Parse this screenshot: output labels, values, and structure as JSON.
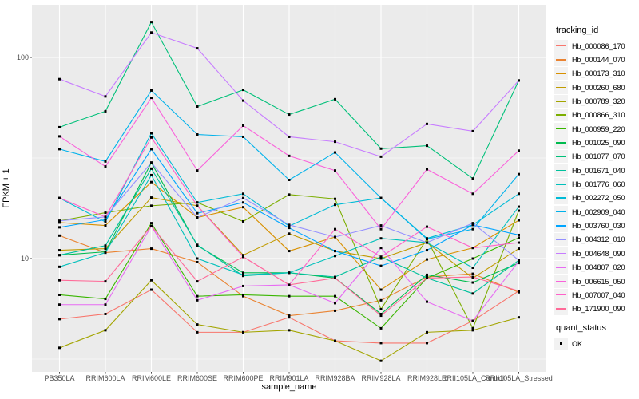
{
  "chart_data": {
    "type": "line",
    "title": "",
    "xlabel": "sample_name",
    "ylabel": "FPKM + 1",
    "y_scale": "log10",
    "ylim": [
      2.8,
      180
    ],
    "y_tick_labels": [
      "100",
      "10"
    ],
    "y_tick_values": [
      100,
      10
    ],
    "y_minor_gridlines": [
      31.6228,
      3.16228
    ],
    "grid": true,
    "legend_position": "right",
    "point_marker": "small-black-square",
    "categories": [
      "PB350LA",
      "RRIM600LA",
      "RRIM600LE",
      "RRIM600SE",
      "RRIM600PE",
      "RRIM901LA",
      "RRIM928BA",
      "RRIM928LA",
      "RRIM928LE",
      "RRII105LA_Control",
      "RRII105LA_Stressed"
    ],
    "series": [
      {
        "name": "Hb_000086_170",
        "color": "#F8766D",
        "values": [
          5.0,
          5.3,
          7.0,
          4.3,
          4.3,
          5.1,
          3.9,
          3.8,
          3.8,
          4.9,
          6.9
        ]
      },
      {
        "name": "Hb_000144_070",
        "color": "#EA8331",
        "values": [
          13.0,
          10.7,
          11.2,
          9.6,
          6.5,
          5.2,
          5.5,
          6.2,
          8.1,
          8.4,
          6.8
        ]
      },
      {
        "name": "Hb_000173_310",
        "color": "#D89000",
        "values": [
          15.1,
          14.6,
          24.0,
          16.0,
          18.0,
          10.9,
          12.8,
          7.0,
          9.9,
          11.3,
          15.5
        ]
      },
      {
        "name": "Hb_000260_680",
        "color": "#C09B00",
        "values": [
          11.0,
          11.2,
          20.1,
          18.3,
          10.4,
          13.3,
          10.9,
          10.0,
          12.0,
          8.0,
          11.2
        ]
      },
      {
        "name": "Hb_000789_320",
        "color": "#A3A500",
        "values": [
          3.6,
          4.4,
          7.8,
          4.7,
          4.3,
          4.4,
          3.9,
          3.1,
          4.3,
          4.4,
          5.1
        ]
      },
      {
        "name": "Hb_000866_310",
        "color": "#7CAE00",
        "values": [
          15.4,
          16.9,
          18.3,
          19.0,
          15.3,
          20.8,
          19.8,
          5.6,
          12.5,
          4.5,
          17.3
        ]
      },
      {
        "name": "Hb_000959_220",
        "color": "#39B600",
        "values": [
          6.6,
          6.3,
          15.0,
          6.5,
          6.6,
          6.5,
          6.5,
          4.5,
          8.0,
          10.0,
          12.7
        ]
      },
      {
        "name": "Hb_001025_090",
        "color": "#00BB4E",
        "values": [
          10.4,
          10.8,
          30.0,
          11.6,
          8.5,
          8.5,
          8.0,
          5.3,
          8.3,
          7.6,
          9.5
        ]
      },
      {
        "name": "Hb_001077_070",
        "color": "#00C079",
        "values": [
          45.0,
          54.0,
          150.0,
          57.0,
          69.0,
          52.0,
          62.0,
          35.2,
          36.4,
          25.0,
          76.8
        ]
      },
      {
        "name": "Hb_001671_040",
        "color": "#00C19C",
        "values": [
          10.4,
          11.6,
          28.0,
          11.7,
          8.2,
          8.5,
          8.1,
          10.2,
          8.0,
          6.7,
          9.8
        ]
      },
      {
        "name": "Hb_001776_060",
        "color": "#00C0BB",
        "values": [
          9.1,
          10.7,
          26.0,
          10.0,
          8.3,
          8.5,
          10.3,
          12.6,
          12.0,
          9.0,
          18.1
        ]
      },
      {
        "name": "Hb_002272_050",
        "color": "#00BBD6",
        "values": [
          20.0,
          15.2,
          42.0,
          19.0,
          21.0,
          14.5,
          18.5,
          20.0,
          12.6,
          14.7,
          21.0
        ]
      },
      {
        "name": "Hb_002909_040",
        "color": "#00B2EB",
        "values": [
          35.0,
          30.4,
          68.5,
          41.4,
          40.3,
          24.6,
          33.7,
          20.0,
          12.5,
          14.0,
          26.3
        ]
      },
      {
        "name": "Hb_003760_030",
        "color": "#00A5FF",
        "values": [
          14.3,
          15.6,
          35.0,
          16.8,
          19.0,
          14.2,
          10.9,
          9.2,
          11.0,
          14.7,
          13.1
        ]
      },
      {
        "name": "Hb_004312_010",
        "color": "#9590FF",
        "values": [
          15.4,
          16.1,
          30.0,
          16.0,
          20.0,
          14.7,
          12.8,
          14.6,
          12.0,
          15.0,
          9.8
        ]
      },
      {
        "name": "Hb_004648_090",
        "color": "#C77CFF",
        "values": [
          78.0,
          64.0,
          133.0,
          111.0,
          61.0,
          40.3,
          38.1,
          32.1,
          46.7,
          43.0,
          76.8
        ]
      },
      {
        "name": "Hb_004807_020",
        "color": "#E76BF3",
        "values": [
          5.9,
          5.9,
          14.5,
          6.2,
          7.3,
          7.4,
          6.0,
          11.3,
          6.1,
          4.9,
          9.7
        ]
      },
      {
        "name": "Hb_006615_050",
        "color": "#FA62DB",
        "values": [
          40.5,
          28.7,
          63.0,
          27.4,
          45.8,
          32.4,
          27.4,
          14.0,
          27.8,
          21.0,
          34.4
        ]
      },
      {
        "name": "Hb_007007_040",
        "color": "#FF61C9",
        "values": [
          20.0,
          16.1,
          40.0,
          18.3,
          10.2,
          7.4,
          14.0,
          10.2,
          14.4,
          11.3,
          12.0
        ]
      },
      {
        "name": "Hb_171900_090",
        "color": "#FF6A98",
        "values": [
          7.8,
          7.7,
          14.5,
          7.7,
          10.2,
          7.4,
          8.0,
          5.2,
          8.0,
          8.1,
          6.9
        ]
      }
    ]
  },
  "legend": {
    "color_title": "tracking_id",
    "shape_title": "quant_status",
    "shape_items": [
      {
        "label": "OK",
        "shape": "black-point"
      }
    ]
  },
  "colors": {
    "panel_bg": "#EBEBEB",
    "gridline": "#FFFFFF",
    "tick_text": "#4D4D4D",
    "tick_mark": "#333333",
    "point": "#000000",
    "legend_key_bg": "#F2F2F2"
  }
}
